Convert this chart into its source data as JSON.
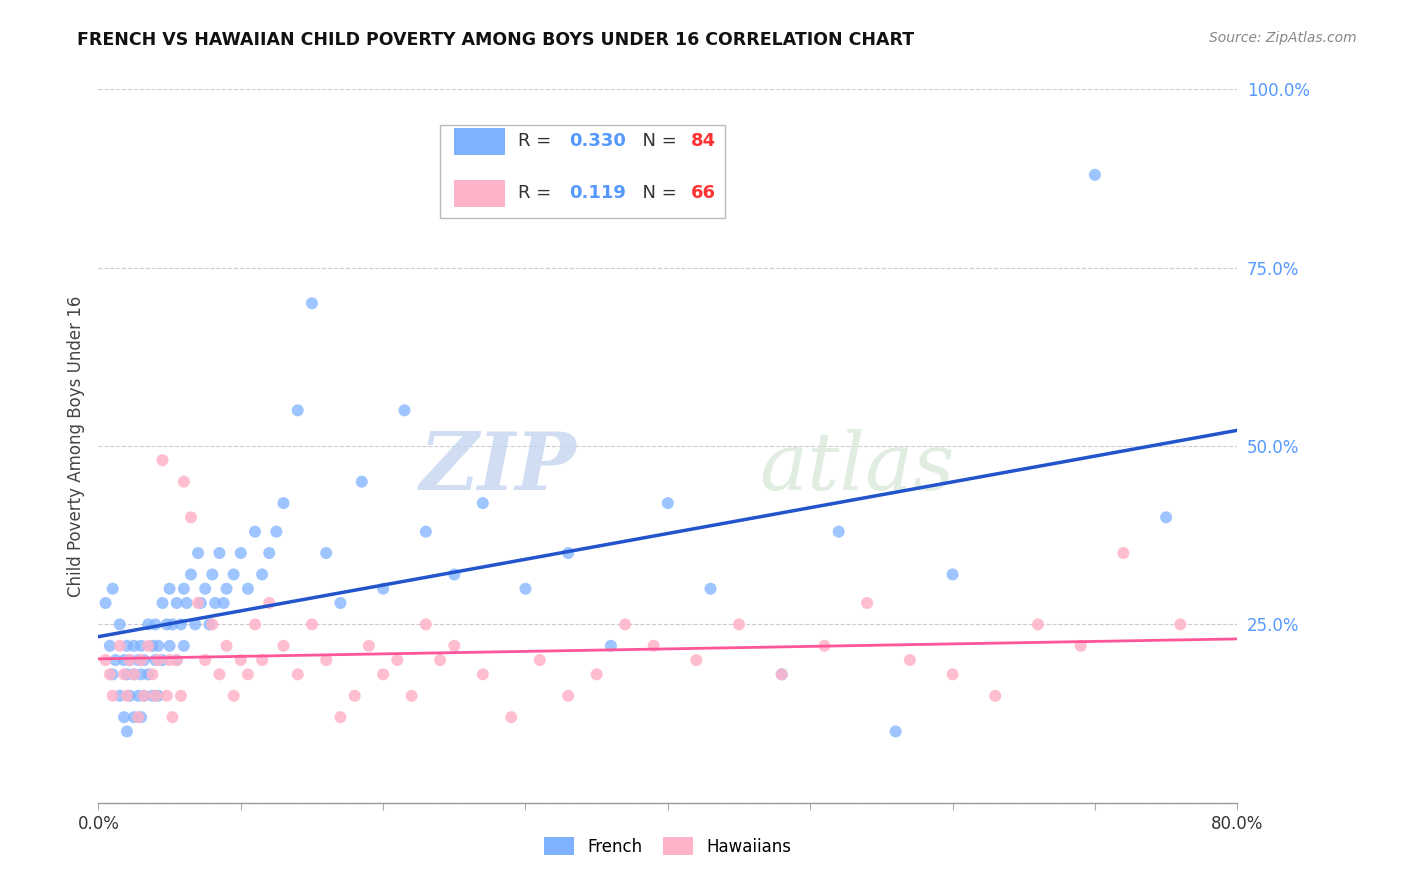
{
  "title": "FRENCH VS HAWAIIAN CHILD POVERTY AMONG BOYS UNDER 16 CORRELATION CHART",
  "source": "Source: ZipAtlas.com",
  "ylabel": "Child Poverty Among Boys Under 16",
  "xlim": [
    0.0,
    0.8
  ],
  "ylim": [
    0.0,
    1.0
  ],
  "xticks": [
    0.0,
    0.1,
    0.2,
    0.3,
    0.4,
    0.5,
    0.6,
    0.7,
    0.8
  ],
  "xticklabels": [
    "0.0%",
    "",
    "",
    "",
    "",
    "",
    "",
    "",
    "80.0%"
  ],
  "yticks": [
    0.0,
    0.25,
    0.5,
    0.75,
    1.0
  ],
  "yticklabels": [
    "",
    "25.0%",
    "50.0%",
    "75.0%",
    "100.0%"
  ],
  "french_color": "#7EB2FF",
  "hawaiian_color": "#FFB3C8",
  "regression_french_color": "#2255CC",
  "regression_hawaiian_color": "#FF5599",
  "french_R": 0.33,
  "french_N": 84,
  "hawaiian_R": 0.119,
  "hawaiian_N": 66,
  "watermark_zip": "ZIP",
  "watermark_atlas": "atlas",
  "french_x": [
    0.005,
    0.008,
    0.01,
    0.01,
    0.012,
    0.015,
    0.015,
    0.018,
    0.018,
    0.02,
    0.02,
    0.02,
    0.022,
    0.022,
    0.025,
    0.025,
    0.025,
    0.028,
    0.028,
    0.03,
    0.03,
    0.03,
    0.032,
    0.032,
    0.035,
    0.035,
    0.038,
    0.038,
    0.04,
    0.04,
    0.042,
    0.042,
    0.045,
    0.045,
    0.048,
    0.05,
    0.05,
    0.052,
    0.055,
    0.055,
    0.058,
    0.06,
    0.06,
    0.062,
    0.065,
    0.068,
    0.07,
    0.072,
    0.075,
    0.078,
    0.08,
    0.082,
    0.085,
    0.088,
    0.09,
    0.095,
    0.1,
    0.105,
    0.11,
    0.115,
    0.12,
    0.125,
    0.13,
    0.14,
    0.15,
    0.16,
    0.17,
    0.185,
    0.2,
    0.215,
    0.23,
    0.25,
    0.27,
    0.3,
    0.33,
    0.36,
    0.4,
    0.43,
    0.48,
    0.52,
    0.56,
    0.6,
    0.7,
    0.75
  ],
  "french_y": [
    0.28,
    0.22,
    0.3,
    0.18,
    0.2,
    0.15,
    0.25,
    0.2,
    0.12,
    0.22,
    0.18,
    0.1,
    0.2,
    0.15,
    0.22,
    0.18,
    0.12,
    0.2,
    0.15,
    0.22,
    0.18,
    0.12,
    0.2,
    0.15,
    0.25,
    0.18,
    0.22,
    0.15,
    0.25,
    0.2,
    0.22,
    0.15,
    0.28,
    0.2,
    0.25,
    0.3,
    0.22,
    0.25,
    0.28,
    0.2,
    0.25,
    0.3,
    0.22,
    0.28,
    0.32,
    0.25,
    0.35,
    0.28,
    0.3,
    0.25,
    0.32,
    0.28,
    0.35,
    0.28,
    0.3,
    0.32,
    0.35,
    0.3,
    0.38,
    0.32,
    0.35,
    0.38,
    0.42,
    0.55,
    0.7,
    0.35,
    0.28,
    0.45,
    0.3,
    0.55,
    0.38,
    0.32,
    0.42,
    0.3,
    0.35,
    0.22,
    0.42,
    0.3,
    0.18,
    0.38,
    0.1,
    0.32,
    0.88,
    0.4
  ],
  "hawaiian_x": [
    0.005,
    0.008,
    0.01,
    0.015,
    0.018,
    0.02,
    0.022,
    0.025,
    0.028,
    0.03,
    0.032,
    0.035,
    0.038,
    0.04,
    0.042,
    0.045,
    0.048,
    0.05,
    0.052,
    0.055,
    0.058,
    0.06,
    0.065,
    0.07,
    0.075,
    0.08,
    0.085,
    0.09,
    0.095,
    0.1,
    0.105,
    0.11,
    0.115,
    0.12,
    0.13,
    0.14,
    0.15,
    0.16,
    0.17,
    0.18,
    0.19,
    0.2,
    0.21,
    0.22,
    0.23,
    0.24,
    0.25,
    0.27,
    0.29,
    0.31,
    0.33,
    0.35,
    0.37,
    0.39,
    0.42,
    0.45,
    0.48,
    0.51,
    0.54,
    0.57,
    0.6,
    0.63,
    0.66,
    0.69,
    0.72,
    0.76
  ],
  "hawaiian_y": [
    0.2,
    0.18,
    0.15,
    0.22,
    0.18,
    0.15,
    0.2,
    0.18,
    0.12,
    0.2,
    0.15,
    0.22,
    0.18,
    0.15,
    0.2,
    0.48,
    0.15,
    0.2,
    0.12,
    0.2,
    0.15,
    0.45,
    0.4,
    0.28,
    0.2,
    0.25,
    0.18,
    0.22,
    0.15,
    0.2,
    0.18,
    0.25,
    0.2,
    0.28,
    0.22,
    0.18,
    0.25,
    0.2,
    0.12,
    0.15,
    0.22,
    0.18,
    0.2,
    0.15,
    0.25,
    0.2,
    0.22,
    0.18,
    0.12,
    0.2,
    0.15,
    0.18,
    0.25,
    0.22,
    0.2,
    0.25,
    0.18,
    0.22,
    0.28,
    0.2,
    0.18,
    0.15,
    0.25,
    0.22,
    0.35,
    0.25
  ]
}
